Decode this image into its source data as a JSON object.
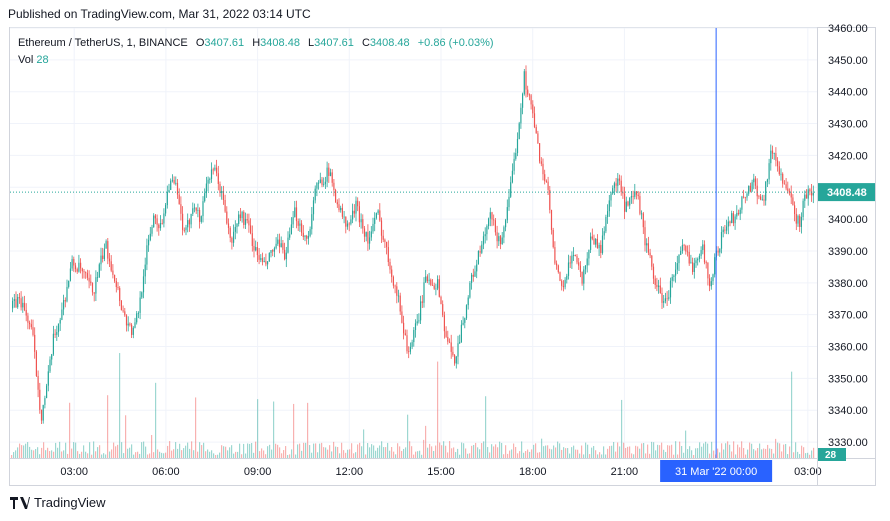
{
  "header": {
    "published": "Published on TradingView.com, Mar 31, 2022 03:14 UTC"
  },
  "legend": {
    "symbol": "Ethereum / TetherUS, 1, BINANCE",
    "open_label": "O",
    "open": "3407.61",
    "high_label": "H",
    "high": "3408.48",
    "low_label": "L",
    "low": "3407.61",
    "close_label": "C",
    "close": "3408.48",
    "change": "+0.86 (+0.03%)",
    "vol_label": "Vol",
    "vol": "28"
  },
  "footer": {
    "brand": "TradingView"
  },
  "colors": {
    "up": "#26a69a",
    "down": "#ef5350",
    "crosshair": "#2962ff",
    "price_tag": "#26a69a"
  },
  "chart_data": {
    "type": "candlestick",
    "symbol": "ETHUSDT",
    "interval": "1 minute",
    "ylim": [
      3325,
      3460
    ],
    "y_ticks": [
      3330,
      3340,
      3350,
      3360,
      3370,
      3380,
      3390,
      3400,
      3410,
      3420,
      3430,
      3440,
      3450,
      3460
    ],
    "x_ticks": [
      "03:00",
      "06:00",
      "09:00",
      "12:00",
      "15:00",
      "18:00",
      "21:00",
      "03:00"
    ],
    "x_tick_hours": [
      3,
      6,
      9,
      12,
      15,
      18,
      21,
      27
    ],
    "x_range_hours": [
      0.9,
      27.3
    ],
    "last_price": "3408.48",
    "last_volume": "28",
    "crosshair_label": "31 Mar '22   00:00",
    "crosshair_hour": 24,
    "path_hour": [
      0.9,
      1.2,
      1.6,
      1.9,
      2.1,
      2.3,
      2.6,
      2.9,
      3.2,
      3.6,
      4.0,
      4.3,
      4.6,
      4.9,
      5.1,
      5.3,
      5.6,
      5.8,
      6.1,
      6.3,
      6.6,
      6.9,
      7.1,
      7.3,
      7.6,
      7.9,
      8.1,
      8.4,
      8.7,
      8.9,
      9.2,
      9.6,
      9.9,
      10.2,
      10.6,
      10.9,
      11.3,
      11.6,
      11.9,
      12.2,
      12.6,
      12.9,
      13.3,
      13.6,
      13.9,
      14.2,
      14.5,
      14.9,
      15.1,
      15.4,
      15.7,
      16.0,
      16.3,
      16.6,
      16.9,
      17.2,
      17.5,
      17.7,
      17.9,
      18.2,
      18.5,
      18.7,
      19.0,
      19.3,
      19.6,
      19.9,
      20.2,
      20.5,
      20.8,
      21.0,
      21.4,
      21.7,
      22.0,
      22.3,
      22.6,
      22.9,
      23.2,
      23.5,
      23.8,
      24.0,
      24.3,
      24.6,
      24.9,
      25.2,
      25.5,
      25.8,
      26.1,
      26.4,
      26.7,
      26.9
    ],
    "path_price": [
      3372,
      3375,
      3365,
      3338,
      3348,
      3362,
      3372,
      3386,
      3384,
      3377,
      3392,
      3382,
      3370,
      3364,
      3372,
      3387,
      3402,
      3397,
      3412,
      3410,
      3394,
      3406,
      3399,
      3412,
      3415,
      3404,
      3392,
      3402,
      3397,
      3390,
      3385,
      3392,
      3389,
      3402,
      3393,
      3410,
      3415,
      3405,
      3397,
      3404,
      3393,
      3402,
      3386,
      3374,
      3358,
      3367,
      3382,
      3379,
      3365,
      3355,
      3368,
      3382,
      3391,
      3401,
      3392,
      3405,
      3428,
      3445,
      3437,
      3420,
      3407,
      3385,
      3378,
      3391,
      3381,
      3395,
      3390,
      3408,
      3412,
      3403,
      3408,
      3391,
      3380,
      3373,
      3383,
      3391,
      3385,
      3392,
      3379,
      3390,
      3398,
      3401,
      3407,
      3412,
      3405,
      3422,
      3414,
      3406,
      3398,
      3408
    ]
  }
}
